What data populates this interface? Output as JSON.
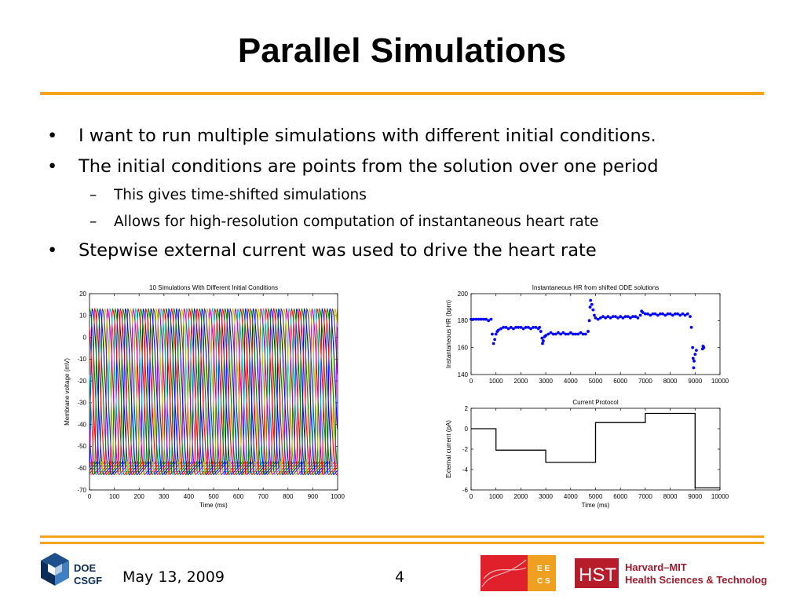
{
  "slide": {
    "title": "Parallel Simulations",
    "bullets": [
      {
        "level": 1,
        "text": "I want to run multiple simulations with different initial conditions."
      },
      {
        "level": 1,
        "text": "The initial conditions are points from the solution over one period"
      },
      {
        "level": 2,
        "text": "This gives time-shifted simulations"
      },
      {
        "level": 2,
        "text": "Allows for high-resolution computation of instantaneous heart rate"
      },
      {
        "level": 1,
        "text": "Stepwise external current was used to drive the heart rate"
      }
    ],
    "accent_color": "#f5a21c"
  },
  "footer": {
    "date": "May 13, 2009",
    "page": "4",
    "logo_doe": [
      "DOE",
      "CSGF"
    ],
    "logo_eecs": [
      "E E",
      "C S"
    ],
    "hst_mark": "HST",
    "hst_text": [
      "Harvard–MIT",
      "Health Sciences & Technology"
    ]
  },
  "chart_data": [
    {
      "type": "line",
      "title": "10 Simulations With Different Initial Conditions",
      "xlabel": "Time (ms)",
      "ylabel": "Membrane voltage (mV)",
      "xlim": [
        0,
        1000
      ],
      "ylim": [
        -70,
        20
      ],
      "xticks": [
        0,
        100,
        200,
        300,
        400,
        500,
        600,
        700,
        800,
        900,
        1000
      ],
      "yticks": [
        20,
        10,
        0,
        -10,
        -20,
        -30,
        -40,
        -50,
        -60,
        -70
      ],
      "period_ms": 103,
      "vmax": 13,
      "vmin": -63,
      "series": [
        {
          "phase_ms": 0,
          "color": "#0000ff"
        },
        {
          "phase_ms": 10.3,
          "color": "#008000"
        },
        {
          "phase_ms": 20.6,
          "color": "#ff0000"
        },
        {
          "phase_ms": 30.9,
          "color": "#00bfbf"
        },
        {
          "phase_ms": 41.2,
          "color": "#bf00bf"
        },
        {
          "phase_ms": 51.5,
          "color": "#bfbf00"
        },
        {
          "phase_ms": 61.8,
          "color": "#404040"
        },
        {
          "phase_ms": 72.1,
          "color": "#0000ff"
        },
        {
          "phase_ms": 82.4,
          "color": "#008000"
        },
        {
          "phase_ms": 92.7,
          "color": "#ff0000"
        }
      ]
    },
    {
      "type": "scatter",
      "title": "Instantaneous HR from shifted ODE solutions",
      "xlabel": "",
      "ylabel": "Instantaneous HR (bpm)",
      "xlim": [
        0,
        10000
      ],
      "ylim": [
        140,
        200
      ],
      "xticks": [
        0,
        1000,
        2000,
        3000,
        4000,
        5000,
        6000,
        7000,
        8000,
        9000,
        10000
      ],
      "yticks": [
        200,
        180,
        160,
        140
      ],
      "color": "#0000ff",
      "points": [
        [
          0,
          181
        ],
        [
          100,
          181
        ],
        [
          200,
          181
        ],
        [
          300,
          181
        ],
        [
          400,
          181
        ],
        [
          500,
          181
        ],
        [
          600,
          181
        ],
        [
          700,
          180
        ],
        [
          800,
          181
        ],
        [
          850,
          170
        ],
        [
          900,
          163
        ],
        [
          950,
          166
        ],
        [
          1000,
          170
        ],
        [
          1050,
          172
        ],
        [
          1100,
          173
        ],
        [
          1200,
          174
        ],
        [
          1300,
          175
        ],
        [
          1400,
          175
        ],
        [
          1500,
          174
        ],
        [
          1600,
          175
        ],
        [
          1700,
          174
        ],
        [
          1800,
          175
        ],
        [
          1900,
          175
        ],
        [
          2000,
          175
        ],
        [
          2100,
          174
        ],
        [
          2200,
          175
        ],
        [
          2300,
          175
        ],
        [
          2400,
          174
        ],
        [
          2500,
          175
        ],
        [
          2600,
          175
        ],
        [
          2700,
          174
        ],
        [
          2750,
          175
        ],
        [
          2800,
          172
        ],
        [
          2850,
          167
        ],
        [
          2870,
          163
        ],
        [
          2900,
          165
        ],
        [
          2950,
          168
        ],
        [
          3000,
          169
        ],
        [
          3100,
          170
        ],
        [
          3200,
          171
        ],
        [
          3300,
          170
        ],
        [
          3400,
          170
        ],
        [
          3500,
          171
        ],
        [
          3600,
          170
        ],
        [
          3700,
          171
        ],
        [
          3800,
          170
        ],
        [
          3900,
          170
        ],
        [
          4000,
          171
        ],
        [
          4100,
          170
        ],
        [
          4200,
          170
        ],
        [
          4300,
          170
        ],
        [
          4400,
          171
        ],
        [
          4500,
          170
        ],
        [
          4600,
          170
        ],
        [
          4700,
          172
        ],
        [
          4750,
          180
        ],
        [
          4780,
          190
        ],
        [
          4800,
          195
        ],
        [
          4850,
          192
        ],
        [
          4900,
          188
        ],
        [
          4950,
          184
        ],
        [
          5000,
          182
        ],
        [
          5100,
          181
        ],
        [
          5200,
          182
        ],
        [
          5300,
          183
        ],
        [
          5400,
          182
        ],
        [
          5500,
          183
        ],
        [
          5600,
          182
        ],
        [
          5700,
          183
        ],
        [
          5800,
          183
        ],
        [
          5900,
          182
        ],
        [
          6000,
          183
        ],
        [
          6100,
          182
        ],
        [
          6200,
          183
        ],
        [
          6300,
          183
        ],
        [
          6400,
          182
        ],
        [
          6500,
          183
        ],
        [
          6600,
          183
        ],
        [
          6700,
          182
        ],
        [
          6800,
          184
        ],
        [
          6850,
          187
        ],
        [
          6900,
          186
        ],
        [
          7000,
          185
        ],
        [
          7100,
          185
        ],
        [
          7200,
          184
        ],
        [
          7300,
          185
        ],
        [
          7400,
          185
        ],
        [
          7500,
          184
        ],
        [
          7600,
          185
        ],
        [
          7700,
          185
        ],
        [
          7800,
          184
        ],
        [
          7900,
          185
        ],
        [
          8000,
          185
        ],
        [
          8100,
          184
        ],
        [
          8200,
          185
        ],
        [
          8300,
          185
        ],
        [
          8400,
          184
        ],
        [
          8500,
          185
        ],
        [
          8600,
          184
        ],
        [
          8700,
          185
        ],
        [
          8800,
          183
        ],
        [
          8850,
          175
        ],
        [
          8900,
          160
        ],
        [
          8920,
          152
        ],
        [
          8940,
          145
        ],
        [
          8960,
          150
        ],
        [
          9000,
          155
        ],
        [
          9050,
          158
        ],
        [
          9300,
          159
        ],
        [
          9320,
          161
        ],
        [
          9350,
          160
        ]
      ]
    },
    {
      "type": "line",
      "title": "Current Protocol",
      "xlabel": "Time (ms)",
      "ylabel": "External current (pA)",
      "xlim": [
        0,
        10000
      ],
      "ylim": [
        -6,
        2
      ],
      "xticks": [
        0,
        1000,
        2000,
        3000,
        4000,
        5000,
        6000,
        7000,
        8000,
        9000,
        10000
      ],
      "yticks": [
        2,
        0,
        -2,
        -4,
        -6
      ],
      "x": [
        0,
        1000,
        1000,
        3000,
        3000,
        5000,
        5000,
        7000,
        7000,
        9000,
        9000,
        10000
      ],
      "y": [
        0,
        0,
        -2.1,
        -2.1,
        -3.3,
        -3.3,
        0.6,
        0.6,
        1.5,
        1.5,
        -5.8,
        -5.8
      ]
    }
  ]
}
